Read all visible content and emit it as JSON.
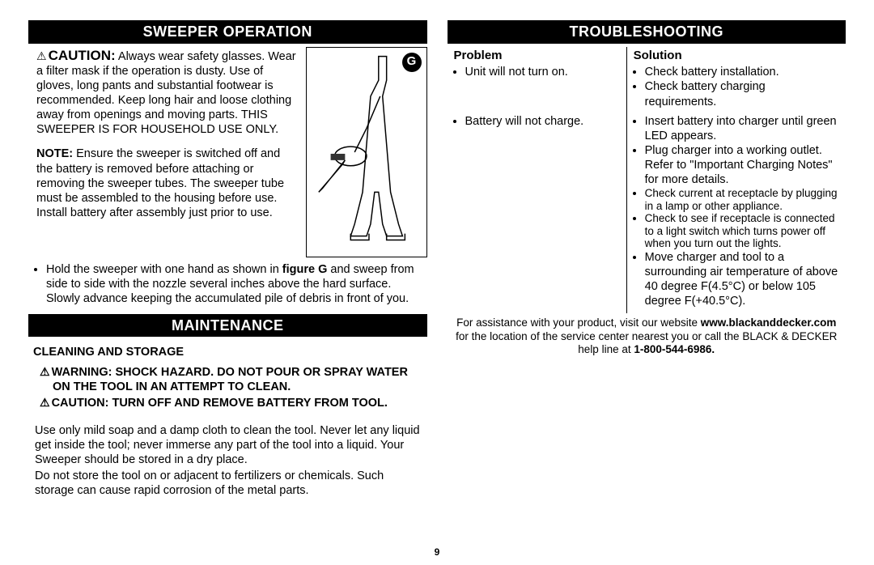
{
  "pageNumber": "9",
  "left": {
    "sweeper": {
      "header": "SWEEPER OPERATION",
      "cautionLabel": "CAUTION:",
      "cautionText": "  Always wear safety glasses. Wear a filter mask if the operation is dusty. Use of gloves, long pants and substantial footwear is recommended. Keep long hair and loose clothing away from openings and moving parts. THIS SWEEPER IS FOR HOUSEHOLD USE ONLY.",
      "noteLabel": "NOTE:",
      "noteText": "  Ensure the sweeper is switched off and the battery is removed before attaching or removing the sweeper tubes. The sweeper tube must be assembled to the housing before use. Install battery after assembly just prior to use.",
      "figureLabel": "G",
      "bullet1a": "Hold the sweeper with one hand as shown in ",
      "bullet1b": "figure G",
      "bullet1c": " and sweep from side to side with the nozzle several inches above the hard surface. Slowly advance keeping the accumulated pile of debris in front of you."
    },
    "maintenance": {
      "header": "MAINTENANCE",
      "subHead": "CLEANING AND STORAGE",
      "warn1": "WARNING: SHOCK HAZARD. DO NOT POUR OR SPRAY WATER ON THE TOOL IN AN ATTEMPT TO CLEAN.",
      "warn2": "CAUTION: TURN OFF AND REMOVE BATTERY FROM TOOL.",
      "body1": "Use only mild soap and a damp cloth to clean the tool. Never let any liquid get inside the tool; never immerse any part of the tool into a liquid. Your Sweeper should be stored in a dry place.",
      "body2": "Do not store the tool on or adjacent to fertilizers or chemicals. Such storage can cause rapid corrosion of the metal parts."
    }
  },
  "right": {
    "troubleshooting": {
      "header": "TROUBLESHOOTING",
      "colProblem": "Problem",
      "colSolution": "Solution",
      "rows": [
        {
          "problem": "Unit will not turn on.",
          "solutions": [
            "Check battery installation.",
            "Check battery charging requirements."
          ]
        },
        {
          "problem": "Battery will not charge.",
          "solutions": [
            "Insert battery into charger until green LED appears.",
            "Plug charger into a working outlet. Refer to \"Important Charging Notes\" for more details.",
            "Check current at receptacle by plugging in a lamp or other appliance.",
            "Check to see if receptacle is connected to a light switch which turns power off when you turn out the lights.",
            "Move charger and tool to a surrounding air temperature of above 40 degree F(4.5°C) or below 105 degree F(+40.5°C)."
          ]
        }
      ]
    },
    "assist": {
      "t1": "For assistance with your product, visit our website ",
      "t2": "www.blackanddecker.com",
      "t3": " for the location of the service center nearest you or call the BLACK & DECKER help line at ",
      "t4": "1-800-544-6986."
    }
  }
}
